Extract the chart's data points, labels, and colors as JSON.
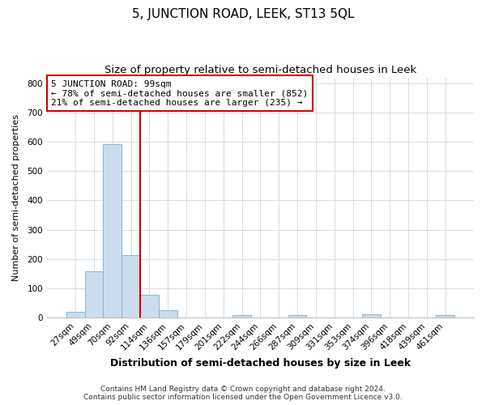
{
  "title": "5, JUNCTION ROAD, LEEK, ST13 5QL",
  "subtitle": "Size of property relative to semi-detached houses in Leek",
  "xlabel": "Distribution of semi-detached houses by size in Leek",
  "ylabel": "Number of semi-detached properties",
  "bar_labels": [
    "27sqm",
    "49sqm",
    "70sqm",
    "92sqm",
    "114sqm",
    "136sqm",
    "157sqm",
    "179sqm",
    "201sqm",
    "222sqm",
    "244sqm",
    "266sqm",
    "287sqm",
    "309sqm",
    "331sqm",
    "353sqm",
    "374sqm",
    "396sqm",
    "418sqm",
    "439sqm",
    "461sqm"
  ],
  "bar_values": [
    20,
    157,
    591,
    214,
    78,
    25,
    0,
    0,
    0,
    8,
    0,
    0,
    8,
    0,
    0,
    0,
    10,
    0,
    0,
    0,
    8
  ],
  "bar_color": "#ccdcec",
  "bar_edge_color": "#8ab4cf",
  "vline_index": 3.5,
  "vline_color": "#cc0000",
  "annotation_text_line1": "5 JUNCTION ROAD: 99sqm",
  "annotation_text_line2": "← 78% of semi-detached houses are smaller (852)",
  "annotation_text_line3": "21% of semi-detached houses are larger (235) →",
  "ylim": [
    0,
    820
  ],
  "yticks": [
    0,
    100,
    200,
    300,
    400,
    500,
    600,
    700,
    800
  ],
  "footer_line1": "Contains HM Land Registry data © Crown copyright and database right 2024.",
  "footer_line2": "Contains public sector information licensed under the Open Government Licence v3.0.",
  "title_fontsize": 11,
  "subtitle_fontsize": 9.5,
  "xlabel_fontsize": 9,
  "ylabel_fontsize": 8,
  "tick_fontsize": 7.5,
  "annotation_fontsize": 8,
  "footer_fontsize": 6.5,
  "grid_color": "#d0d8e0",
  "grid_linewidth": 0.6
}
